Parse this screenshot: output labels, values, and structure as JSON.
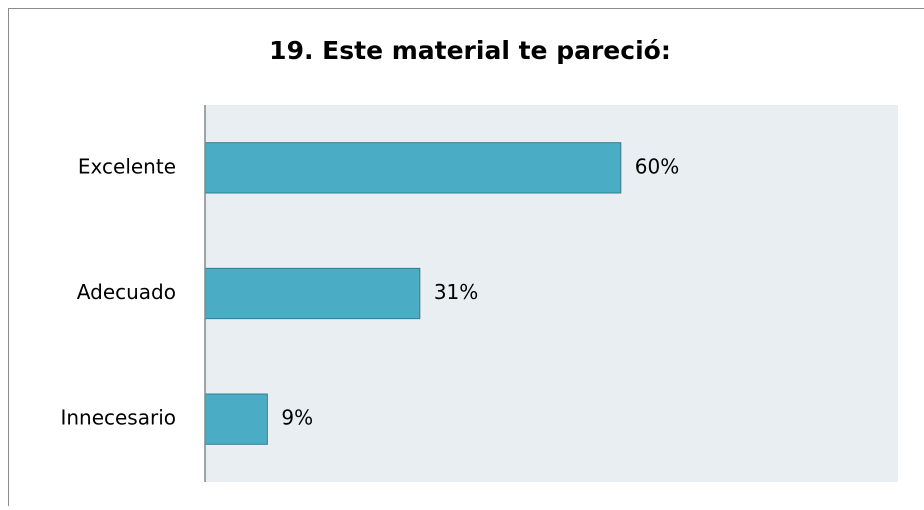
{
  "chart_data": {
    "type": "bar",
    "orientation": "horizontal",
    "title": "19. Este material te pareció:",
    "categories": [
      "Excelente",
      "Adecuado",
      "Innecesario"
    ],
    "values": [
      60,
      31,
      9
    ],
    "value_labels": [
      "60%",
      "31%",
      "9%"
    ],
    "color": "#4bacc6",
    "xlim": [
      0,
      100
    ]
  }
}
